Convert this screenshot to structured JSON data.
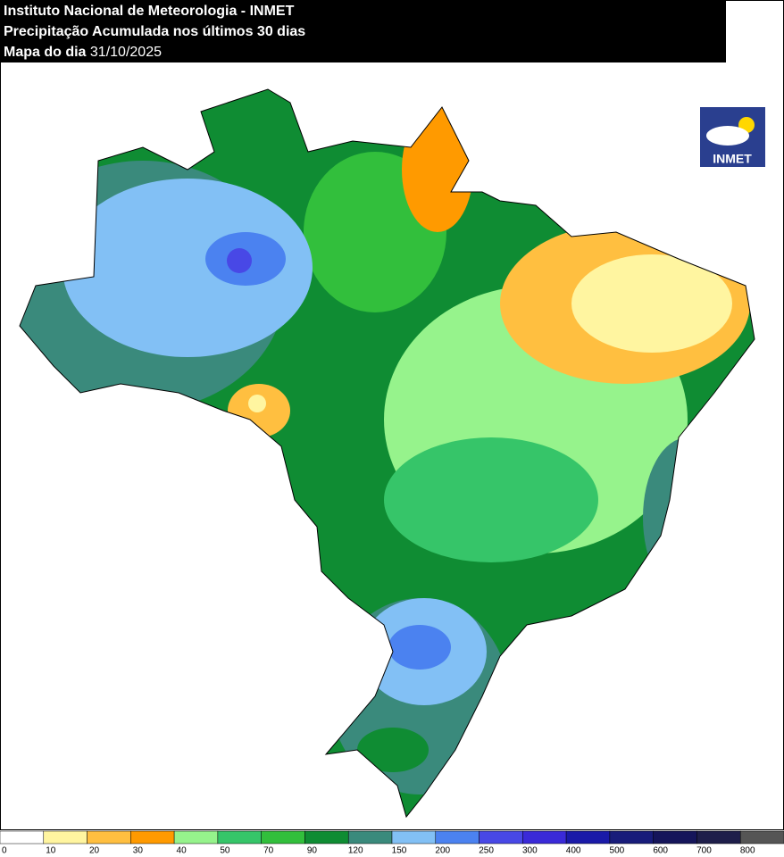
{
  "header": {
    "line1": "Instituto Nacional de Meteorologia - INMET",
    "line2": "Precipitação Acumulada nos últimos 30 dias",
    "date_label": "Mapa do dia",
    "date": "31/10/2025"
  },
  "logo": {
    "text": "INMET"
  },
  "legend": {
    "labels": [
      0,
      10,
      20,
      30,
      40,
      50,
      70,
      90,
      120,
      150,
      200,
      250,
      300,
      400,
      500,
      600,
      700,
      800
    ],
    "colors": [
      "#ffffff",
      "#fff5a0",
      "#ffbf40",
      "#ff9a00",
      "#96f38c",
      "#36c569",
      "#32bf3c",
      "#0f8c33",
      "#3a8a7c",
      "#82c0f5",
      "#4b82f0",
      "#4848e6",
      "#3a2ad8",
      "#1a1aa8",
      "#181c7a",
      "#15155a",
      "#1e1e4a",
      "#555555"
    ]
  }
}
